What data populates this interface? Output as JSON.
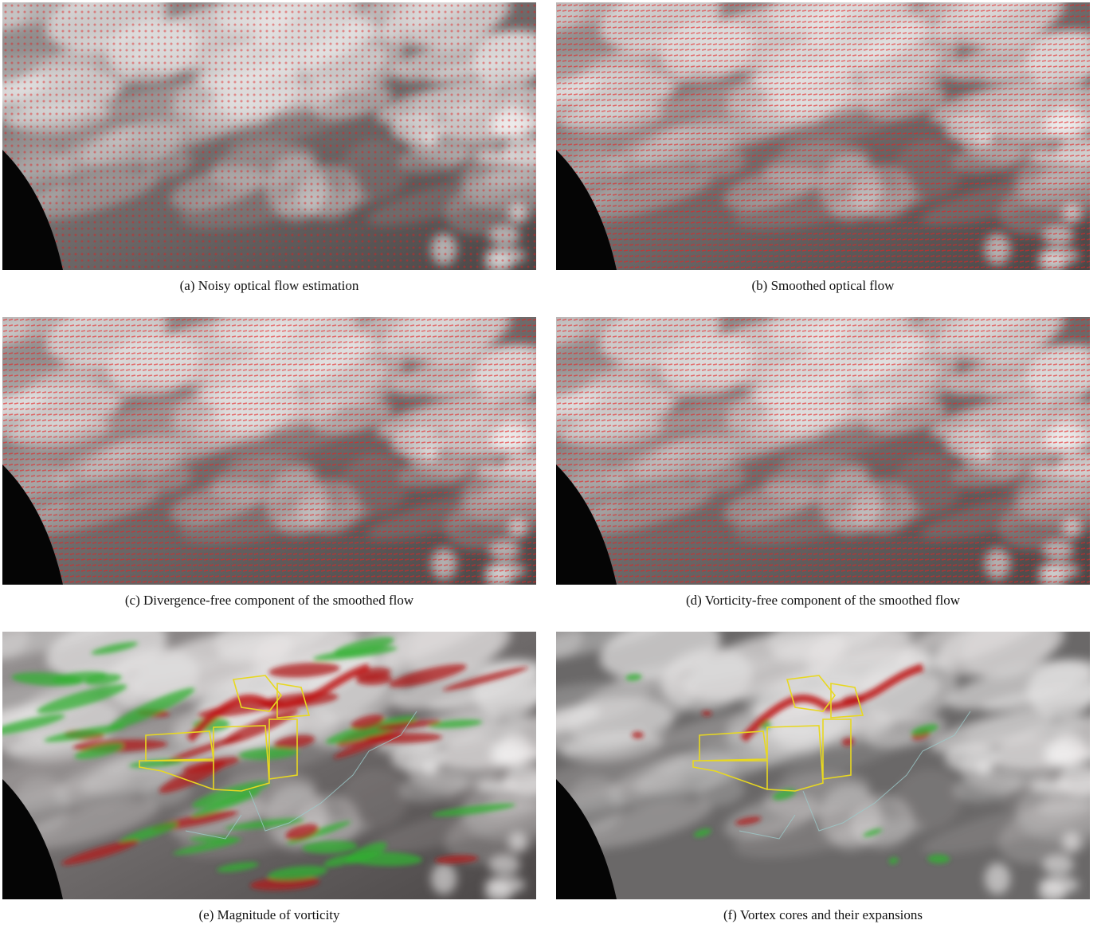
{
  "figure": {
    "panels": [
      {
        "caption": "(a) Noisy optical flow estimation"
      },
      {
        "caption": "(b) Smoothed optical flow"
      },
      {
        "caption": "(c) Divergence-free component of the smoothed flow"
      },
      {
        "caption": "(d) Vorticity-free component of the smoothed flow"
      },
      {
        "caption": "(e) Magnitude of vorticity"
      },
      {
        "caption": "(f) Vortex cores and their expansions"
      }
    ]
  }
}
